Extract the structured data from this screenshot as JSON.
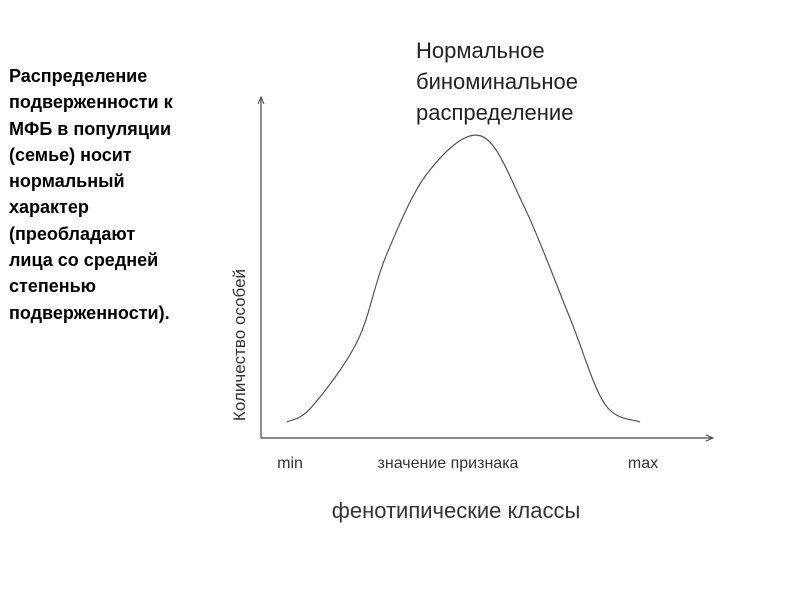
{
  "description_text": "Распределение\nподверженности к\nМФБ в популяции\n(семье) носит\nнормальный\nхарактер\n(преобладают\nлица со средней\nстепенью\nподверженности).",
  "chart_data": {
    "type": "line",
    "title": "Нормальное\nбиноминальное\nраспределение",
    "xlabel": "фенотипические классы",
    "ylabel": "Количество особей",
    "x_ticks": [
      "min",
      "значение признака",
      "max"
    ],
    "x": [
      0,
      0.07,
      0.2,
      0.28,
      0.4,
      0.55,
      0.67,
      0.8,
      0.9,
      1.0
    ],
    "y": [
      0.03,
      0.08,
      0.3,
      0.58,
      0.86,
      0.98,
      0.75,
      0.38,
      0.09,
      0.03
    ],
    "grid": false,
    "legend": "none"
  }
}
